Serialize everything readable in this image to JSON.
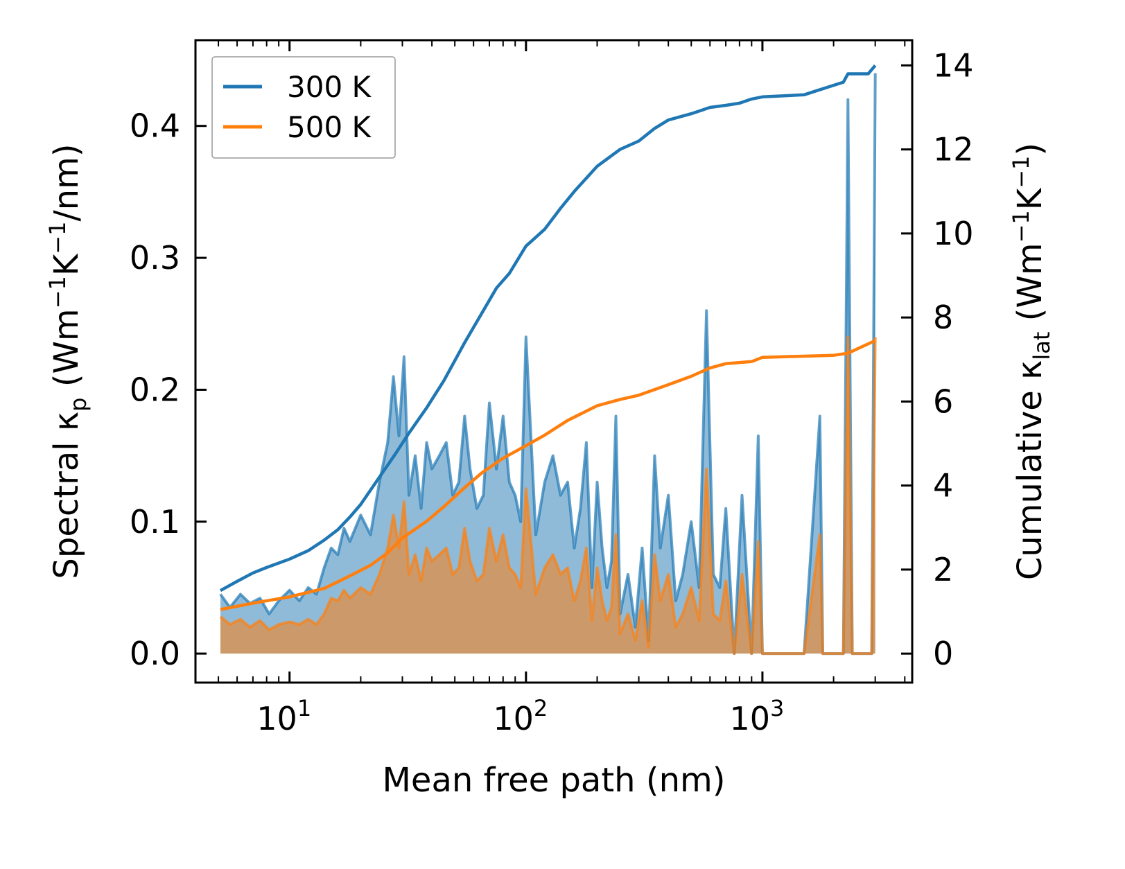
{
  "chart_data": {
    "type": "line",
    "xscale": "log",
    "xlabel": "Mean free path (nm)",
    "ylabel_left": "Spectral κp (Wm−1K−1/nm)",
    "ylabel_right": "Cumulative κlat (Wm−1K−1)",
    "xlim": [
      4,
      4300
    ],
    "ylim_left": [
      -0.022,
      0.465
    ],
    "ylim_right": [
      -0.69,
      14.6
    ],
    "x_ticks": [
      {
        "value": 10,
        "base": "10",
        "exp": "1"
      },
      {
        "value": 100,
        "base": "10",
        "exp": "2"
      },
      {
        "value": 1000,
        "base": "10",
        "exp": "3"
      }
    ],
    "y_ticks_left": [
      "0.0",
      "0.1",
      "0.2",
      "0.3",
      "0.4"
    ],
    "y_ticks_right": [
      "0",
      "2",
      "4",
      "6",
      "8",
      "10",
      "12",
      "14"
    ],
    "colors": {
      "series_300": "#1f77b4",
      "series_500": "#ff7f0e",
      "fill_300": "#1f77b4",
      "fill_500": "#ff7f0e"
    },
    "series": [
      {
        "name": "300 K",
        "cumulative_x": [
          5.1,
          6,
          7,
          8,
          10,
          12,
          14,
          16,
          18,
          20,
          24,
          28,
          32,
          38,
          45,
          55,
          65,
          75,
          85,
          100,
          120,
          140,
          160,
          200,
          250,
          300,
          350,
          400,
          500,
          600,
          700,
          800,
          900,
          1000,
          1500,
          1700,
          2200,
          2300,
          2800,
          3000
        ],
        "cumulative_y": [
          1.5,
          1.72,
          1.92,
          2.05,
          2.25,
          2.45,
          2.7,
          2.95,
          3.25,
          3.55,
          4.2,
          4.75,
          5.25,
          5.85,
          6.5,
          7.4,
          8.1,
          8.7,
          9.05,
          9.7,
          10.1,
          10.6,
          11.0,
          11.6,
          12.0,
          12.2,
          12.5,
          12.7,
          12.85,
          13.0,
          13.05,
          13.1,
          13.2,
          13.25,
          13.3,
          13.4,
          13.6,
          13.8,
          13.8,
          14.0
        ],
        "spectral_x": [
          5.1,
          5.6,
          6.2,
          6.8,
          7.5,
          8.2,
          9.0,
          10,
          11,
          12,
          13,
          14,
          15,
          16,
          17,
          18,
          20,
          22,
          24,
          26,
          27.5,
          29,
          30.5,
          32,
          34,
          36,
          38,
          40,
          43,
          46,
          49,
          52,
          55,
          58,
          62,
          66,
          70,
          75,
          80,
          85,
          90,
          95,
          100,
          110,
          120,
          130,
          140,
          150,
          160,
          170,
          180,
          190,
          200,
          210,
          220,
          230,
          240,
          250,
          270,
          290,
          310,
          330,
          350,
          370,
          400,
          430,
          460,
          500,
          540,
          580,
          620,
          660,
          700,
          760,
          820,
          900,
          960,
          1000,
          1050,
          1500,
          1750,
          1800,
          1850,
          2200,
          2300,
          2400,
          2900,
          3000
        ],
        "spectral_y": [
          0.045,
          0.035,
          0.045,
          0.038,
          0.042,
          0.03,
          0.04,
          0.048,
          0.04,
          0.05,
          0.045,
          0.065,
          0.08,
          0.075,
          0.095,
          0.085,
          0.105,
          0.09,
          0.13,
          0.16,
          0.21,
          0.165,
          0.225,
          0.12,
          0.15,
          0.11,
          0.16,
          0.14,
          0.15,
          0.16,
          0.12,
          0.13,
          0.18,
          0.14,
          0.11,
          0.12,
          0.19,
          0.14,
          0.18,
          0.13,
          0.12,
          0.1,
          0.24,
          0.09,
          0.13,
          0.15,
          0.12,
          0.13,
          0.08,
          0.11,
          0.16,
          0.05,
          0.13,
          0.08,
          0.05,
          0.07,
          0.18,
          0.03,
          0.06,
          0.02,
          0.08,
          0.01,
          0.15,
          0.08,
          0.12,
          0.04,
          0.06,
          0.1,
          0.05,
          0.26,
          0.06,
          0.05,
          0.11,
          0.0,
          0.12,
          0.0,
          0.165,
          0.0,
          0.0,
          0.0,
          0.18,
          0.0,
          0.0,
          0.0,
          0.42,
          0.0,
          0.0,
          0.44
        ]
      },
      {
        "name": "500 K",
        "cumulative_x": [
          5.1,
          7,
          10,
          14,
          18,
          22,
          26,
          30,
          38,
          45,
          55,
          65,
          80,
          100,
          120,
          150,
          200,
          250,
          300,
          400,
          500,
          600,
          700,
          900,
          1000,
          2000,
          2300,
          3000
        ],
        "cumulative_y": [
          1.05,
          1.2,
          1.35,
          1.55,
          1.85,
          2.1,
          2.4,
          2.75,
          3.15,
          3.5,
          3.95,
          4.3,
          4.65,
          4.95,
          5.2,
          5.55,
          5.9,
          6.05,
          6.15,
          6.4,
          6.6,
          6.8,
          6.9,
          6.95,
          7.05,
          7.1,
          7.15,
          7.45
        ],
        "spectral_x": [
          5.1,
          5.6,
          6.2,
          6.8,
          7.5,
          8.2,
          9.0,
          10,
          11,
          12,
          13,
          14,
          15,
          16,
          17,
          18,
          20,
          22,
          24,
          26,
          27.5,
          29,
          30.5,
          32,
          34,
          36,
          38,
          40,
          43,
          46,
          49,
          52,
          55,
          58,
          62,
          66,
          70,
          75,
          80,
          85,
          90,
          95,
          100,
          110,
          120,
          130,
          140,
          150,
          160,
          170,
          180,
          190,
          200,
          210,
          220,
          230,
          240,
          250,
          270,
          290,
          310,
          330,
          350,
          370,
          400,
          430,
          460,
          500,
          540,
          580,
          620,
          660,
          700,
          760,
          820,
          900,
          960,
          1000,
          1050,
          1500,
          1750,
          1800,
          1850,
          2200,
          2300,
          2400,
          2900,
          3000
        ],
        "spectral_y": [
          0.028,
          0.022,
          0.026,
          0.02,
          0.025,
          0.018,
          0.022,
          0.024,
          0.022,
          0.026,
          0.022,
          0.03,
          0.042,
          0.04,
          0.048,
          0.042,
          0.05,
          0.045,
          0.06,
          0.08,
          0.105,
          0.08,
          0.115,
          0.06,
          0.075,
          0.055,
          0.08,
          0.07,
          0.075,
          0.08,
          0.06,
          0.065,
          0.095,
          0.07,
          0.055,
          0.06,
          0.095,
          0.07,
          0.09,
          0.065,
          0.06,
          0.05,
          0.125,
          0.045,
          0.065,
          0.075,
          0.06,
          0.065,
          0.04,
          0.055,
          0.08,
          0.025,
          0.065,
          0.04,
          0.025,
          0.035,
          0.09,
          0.015,
          0.03,
          0.01,
          0.04,
          0.005,
          0.075,
          0.04,
          0.06,
          0.02,
          0.03,
          0.05,
          0.025,
          0.14,
          0.03,
          0.025,
          0.055,
          0.0,
          0.06,
          0.0,
          0.085,
          0.0,
          0.0,
          0.0,
          0.09,
          0.0,
          0.0,
          0.0,
          0.24,
          0.0,
          0.0,
          0.24
        ]
      }
    ],
    "legend": {
      "entries": [
        "300 K",
        "500 K"
      ],
      "placement": "top-left"
    }
  }
}
